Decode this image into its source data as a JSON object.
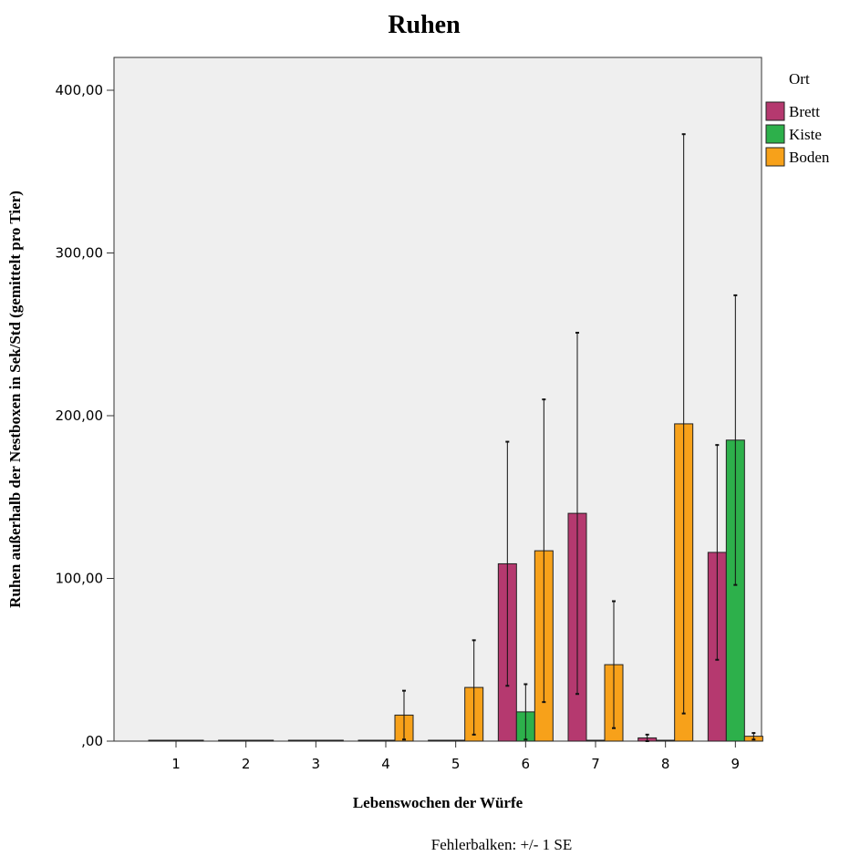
{
  "chart_data": {
    "type": "bar",
    "title": "Ruhen",
    "xlabel": "Lebenswochen der Würfe",
    "ylabel": "Ruhen außerhalb der Nestboxen in Sek/Std (gemittelt pro Tier)",
    "ylim": [
      0,
      420
    ],
    "yticks": [
      0,
      100,
      200,
      300,
      400
    ],
    "ytick_labels": [
      ",00",
      "100,00",
      "200,00",
      "300,00",
      "400,00"
    ],
    "categories": [
      "1",
      "2",
      "3",
      "4",
      "5",
      "6",
      "7",
      "8",
      "9"
    ],
    "legend_title": "Ort",
    "legend_position": "right",
    "grid": false,
    "footnote": "Fehlerbalken: +/- 1 SE",
    "series": [
      {
        "name": "Brett",
        "color": "#b5396f",
        "values": [
          0,
          0,
          0,
          0,
          0,
          109,
          140,
          2,
          116
        ],
        "error": [
          0,
          0,
          0,
          0,
          0,
          75,
          111,
          2,
          66
        ]
      },
      {
        "name": "Kiste",
        "color": "#2db04b",
        "values": [
          0,
          0,
          0,
          0,
          0,
          18,
          0,
          0,
          185
        ],
        "error": [
          0,
          0,
          0,
          0,
          0,
          17,
          0,
          0,
          89
        ]
      },
      {
        "name": "Boden",
        "color": "#f7a11a",
        "values": [
          0,
          0,
          0,
          16,
          33,
          117,
          47,
          195,
          3
        ],
        "error": [
          0,
          0,
          0,
          15,
          29,
          93,
          39,
          178,
          2
        ]
      }
    ]
  }
}
